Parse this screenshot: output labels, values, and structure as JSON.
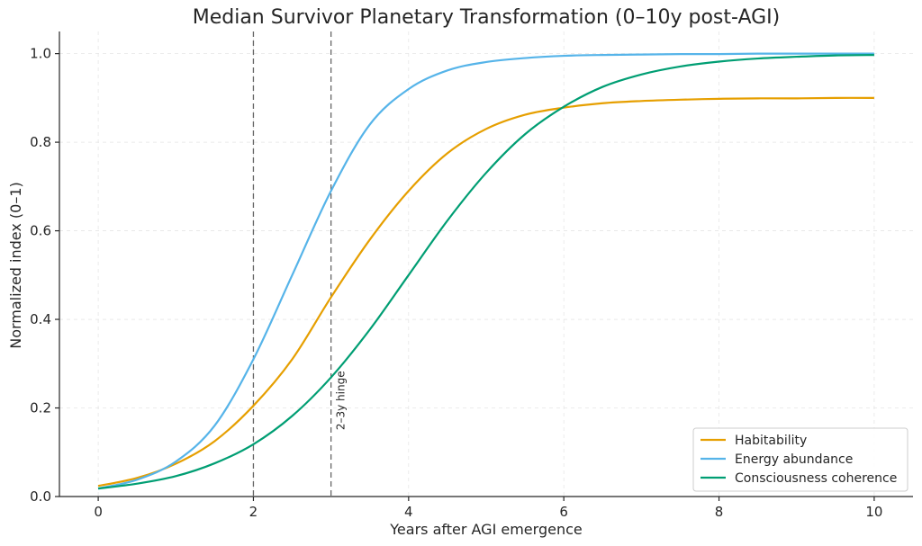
{
  "chart_data": {
    "type": "line",
    "title": "Median Survivor Planetary Transformation (0–10y post-AGI)",
    "xlabel": "Years after AGI emergence",
    "ylabel": "Normalized index (0–1)",
    "xlim": [
      -0.5,
      10.5
    ],
    "ylim": [
      0,
      1.05
    ],
    "xticks": [
      0,
      2,
      4,
      6,
      8,
      10
    ],
    "xtick_labels": [
      "0",
      "2",
      "4",
      "6",
      "8",
      "10"
    ],
    "yticks": [
      0.0,
      0.2,
      0.4,
      0.6,
      0.8,
      1.0
    ],
    "ytick_labels": [
      "0.0",
      "0.2",
      "0.4",
      "0.6",
      "0.8",
      "1.0"
    ],
    "grid": true,
    "legend_position": "bottom-right",
    "x": [
      0,
      0.5,
      1,
      1.5,
      2,
      2.5,
      3,
      3.5,
      4,
      4.5,
      5,
      5.5,
      6,
      6.5,
      7,
      7.5,
      8,
      8.5,
      9,
      9.5,
      10
    ],
    "series": [
      {
        "name": "Habitability",
        "color": "#E69F00",
        "values": [
          0.024,
          0.042,
          0.074,
          0.125,
          0.205,
          0.31,
          0.45,
          0.58,
          0.69,
          0.775,
          0.83,
          0.862,
          0.878,
          0.888,
          0.893,
          0.896,
          0.898,
          0.899,
          0.899,
          0.9,
          0.9
        ]
      },
      {
        "name": "Energy abundance",
        "color": "#56B4E9",
        "values": [
          0.018,
          0.038,
          0.079,
          0.16,
          0.31,
          0.5,
          0.69,
          0.84,
          0.92,
          0.962,
          0.981,
          0.99,
          0.995,
          0.997,
          0.998,
          0.999,
          0.999,
          1.0,
          1.0,
          1.0,
          1.0
        ]
      },
      {
        "name": "Consciousness coherence",
        "color": "#009E73",
        "values": [
          0.018,
          0.029,
          0.046,
          0.075,
          0.118,
          0.182,
          0.269,
          0.377,
          0.5,
          0.623,
          0.731,
          0.818,
          0.88,
          0.925,
          0.953,
          0.971,
          0.982,
          0.989,
          0.993,
          0.996,
          0.997
        ]
      }
    ],
    "vertical_lines": [
      2,
      3
    ],
    "annotation": {
      "text": "2–3y hinge",
      "x": 3.1,
      "y": 0.15
    }
  }
}
